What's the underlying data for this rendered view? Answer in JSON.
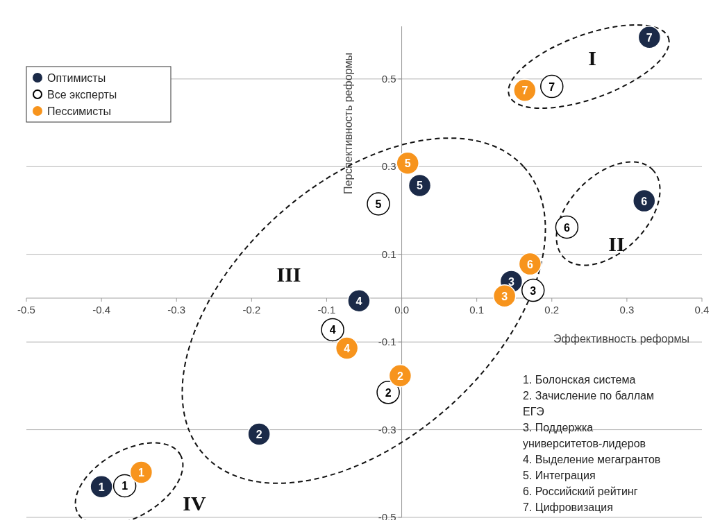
{
  "chart_data": {
    "type": "scatter",
    "xlabel": "Эффективность реформы",
    "ylabel": "Перспективность реформы",
    "xlim": [
      -0.5,
      0.4
    ],
    "ylim": [
      -0.5,
      0.62
    ],
    "xticks": [
      -0.5,
      -0.4,
      -0.3,
      -0.2,
      -0.1,
      {
        "value": 0,
        "label": "0.0"
      },
      0.1,
      0.2,
      0.3,
      0.4
    ],
    "yticks": [
      0.5,
      0.3,
      0.1,
      -0.1,
      -0.3,
      -0.5
    ],
    "grid": "y",
    "legend": "top left",
    "marker": "circle",
    "series": [
      {
        "name": "Оптимисты",
        "color": "#1b2a48",
        "x": [
          -0.4,
          -0.19,
          0.146,
          -0.057,
          0.024,
          0.323,
          0.33
        ],
        "values": [
          -0.43,
          -0.31,
          0.038,
          -0.006,
          0.257,
          0.222,
          0.595
        ]
      },
      {
        "name": "Все эксперты",
        "color": "#ffffff",
        "x": [
          -0.369,
          -0.018,
          0.175,
          -0.092,
          -0.031,
          0.22,
          0.2
        ],
        "values": [
          -0.428,
          -0.215,
          0.018,
          -0.072,
          0.215,
          0.162,
          0.483
        ]
      },
      {
        "name": "Пессимисты",
        "color": "#f7941d",
        "x": [
          -0.347,
          -0.002,
          0.137,
          -0.073,
          0.008,
          0.171,
          0.164
        ],
        "values": [
          -0.397,
          -0.177,
          0.005,
          -0.114,
          0.308,
          0.078,
          0.474
        ]
      }
    ],
    "annotations": [
      "I",
      "II",
      "III",
      "IV",
      "1. Болонская система",
      "2. Зачисление по баллам ЕГЭ",
      "3. Поддержка университетов-лидеров",
      "4. Выделение мегагрантов",
      "5. Интеграция",
      "6. Российский рейтинг",
      "7. Цифровизация",
      {
        "text": "1",
        "x": -0.4,
        "y": -0.43
      },
      {
        "text": "2",
        "x": -0.19,
        "y": -0.31
      },
      {
        "text": "3",
        "x": 0.146,
        "y": 0.038
      },
      {
        "text": "4",
        "x": -0.057,
        "y": -0.006
      },
      {
        "text": "5",
        "x": 0.024,
        "y": 0.257
      },
      {
        "text": "6",
        "x": 0.323,
        "y": 0.222
      },
      {
        "text": "7",
        "x": 0.33,
        "y": 0.595
      },
      {
        "text": "1",
        "x": -0.369,
        "y": -0.428
      },
      {
        "text": "2",
        "x": -0.018,
        "y": -0.215
      },
      {
        "text": "3",
        "x": 0.175,
        "y": 0.018
      },
      {
        "text": "4",
        "x": -0.092,
        "y": -0.072
      },
      {
        "text": "5",
        "x": -0.031,
        "y": 0.215
      },
      {
        "text": "6",
        "x": 0.22,
        "y": 0.162
      },
      {
        "text": "7",
        "x": 0.2,
        "y": 0.483
      },
      {
        "text": "1",
        "x": -0.347,
        "y": -0.397
      },
      {
        "text": "2",
        "x": -0.002,
        "y": -0.177
      },
      {
        "text": "3",
        "x": 0.137,
        "y": 0.005
      },
      {
        "text": "4",
        "x": -0.073,
        "y": -0.114
      },
      {
        "text": "5",
        "x": 0.008,
        "y": 0.308
      },
      {
        "text": "6",
        "x": 0.171,
        "y": 0.078
      },
      {
        "text": "7",
        "x": 0.164,
        "y": 0.474
      }
    ]
  }
}
